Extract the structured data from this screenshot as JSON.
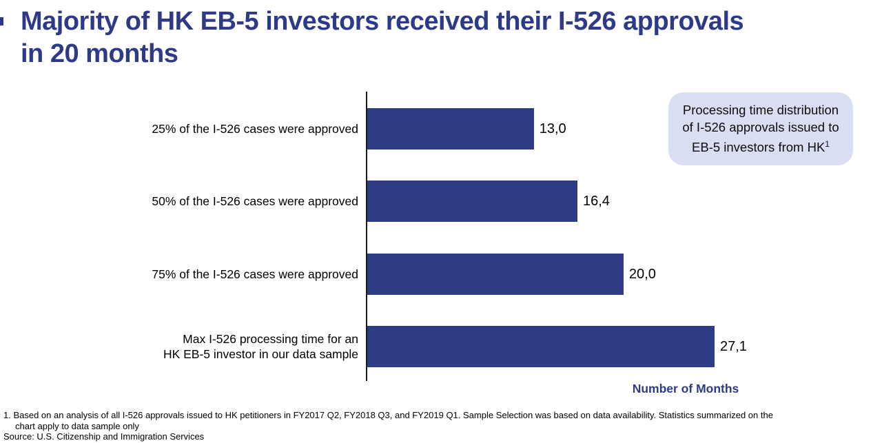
{
  "colors": {
    "navy": "#2e3a87",
    "bar": "#2e3b85",
    "callout_bg": "#d9def2",
    "axis": "#1a1a1a"
  },
  "title": {
    "line1": "Majority of HK EB-5 investors received their I-526 approvals",
    "line2": "in 20 months"
  },
  "callout": {
    "line1": "Processing time distribution",
    "line2": "of I-526 approvals issued to",
    "line3": "EB-5 investors from HK",
    "superscript": "1"
  },
  "chart_data": {
    "type": "bar",
    "orientation": "horizontal",
    "title": "Majority of HK EB-5 investors received their I-526 approvals in 20 months",
    "categories": [
      "25% of the I-526 cases were approved",
      "50% of the I-526 cases were approved",
      "75% of the I-526 cases were approved",
      "Max I-526 processing time for an\nHK EB-5 investor in our data sample"
    ],
    "values": [
      13.0,
      16.4,
      20.0,
      27.1
    ],
    "value_labels": [
      "13,0",
      "16,4",
      "20,0",
      "27,1"
    ],
    "xlabel": "Number of Months",
    "ylabel": "",
    "xlim": [
      0,
      28.5
    ],
    "grid": false,
    "legend": false,
    "bar_color": "#2e3b85",
    "annotation": "Processing time distribution of I-526 approvals issued to EB-5 investors from HK (footnote 1)"
  },
  "footnotes": {
    "note1_line1": "1. Based on an analysis of all I-526 approvals issued to HK petitioners in FY2017 Q2, FY2018 Q3, and FY2019 Q1. Sample Selection was based on data availability. Statistics summarized on the",
    "note1_line2": "chart apply to data sample only",
    "source": "Source: U.S. Citizenship and Immigration Services"
  },
  "xlabel": "Number of Months"
}
